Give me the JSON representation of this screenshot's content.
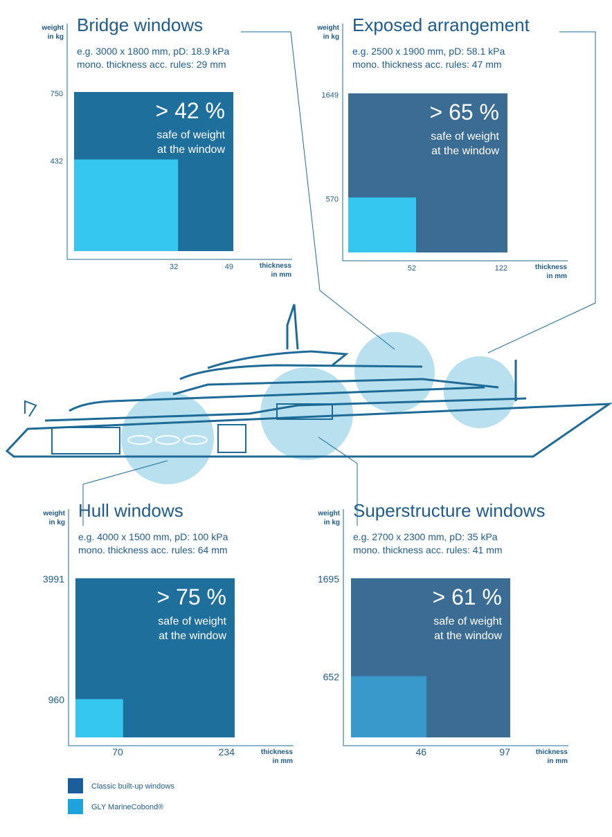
{
  "chart_data": [
    {
      "type": "rect",
      "title": "Bridge windows",
      "spec": "e.g. 3000 x 1800 mm, pD: 18.9 kPa",
      "rule": "mono. thickness acc. rules: 29 mm",
      "headline": "> 42 %",
      "note": [
        "safe of weight",
        "at the window"
      ],
      "y_label": [
        "weight",
        "in kg"
      ],
      "x_label": [
        "thickness",
        "in mm"
      ],
      "series": [
        {
          "color": "#1f6f9d",
          "thickness": 49,
          "weight": 750
        },
        {
          "color": "#34c6ee",
          "thickness": 32,
          "weight": 432
        }
      ]
    },
    {
      "type": "rect",
      "title": "Exposed arrangement",
      "spec": "e.g. 2500 x 1900 mm, pD: 58.1 kPa",
      "rule": "mono. thickness acc. rules: 47 mm",
      "headline": "> 65 %",
      "note": [
        "safe of weight",
        "at the window"
      ],
      "y_label": [
        "weight",
        "in kg"
      ],
      "x_label": [
        "thickness",
        "in mm"
      ],
      "series": [
        {
          "color": "#3b6c94",
          "thickness": 122,
          "weight": 1649
        },
        {
          "color": "#34c6ee",
          "thickness": 52,
          "weight": 570
        }
      ]
    },
    {
      "type": "rect",
      "title": "Hull windows",
      "spec": "e.g. 4000 x 1500 mm, pD: 100 kPa",
      "rule": "mono. thickness acc. rules: 64 mm",
      "headline": "> 75 %",
      "note": [
        "safe of weight",
        "at the window"
      ],
      "y_label": [
        "weight",
        "in kg"
      ],
      "x_label": [
        "thickness",
        "in mm"
      ],
      "series": [
        {
          "color": "#1f6f9d",
          "thickness": 234,
          "weight": 3991
        },
        {
          "color": "#34c6ee",
          "thickness": 70,
          "weight": 960
        }
      ]
    },
    {
      "type": "rect",
      "title": "Superstructure windows",
      "spec": "e.g. 2700 x 2300 mm, pD: 35 kPa",
      "rule": "mono. thickness acc. rules: 41 mm",
      "headline": "> 61 %",
      "note": [
        "safe of weight",
        "at the window"
      ],
      "y_label": [
        "weight",
        "in kg"
      ],
      "x_label": [
        "thickness",
        "in mm"
      ],
      "series": [
        {
          "color": "#3b6c94",
          "thickness": 97,
          "weight": 1695
        },
        {
          "color": "#3a99cb",
          "thickness": 46,
          "weight": 652
        }
      ]
    }
  ],
  "legend": [
    {
      "name": "Classic built-up windows",
      "color": "#1b5e9b"
    },
    {
      "name": "GLY MarineCobond®",
      "color": "#1ea3dc"
    }
  ]
}
